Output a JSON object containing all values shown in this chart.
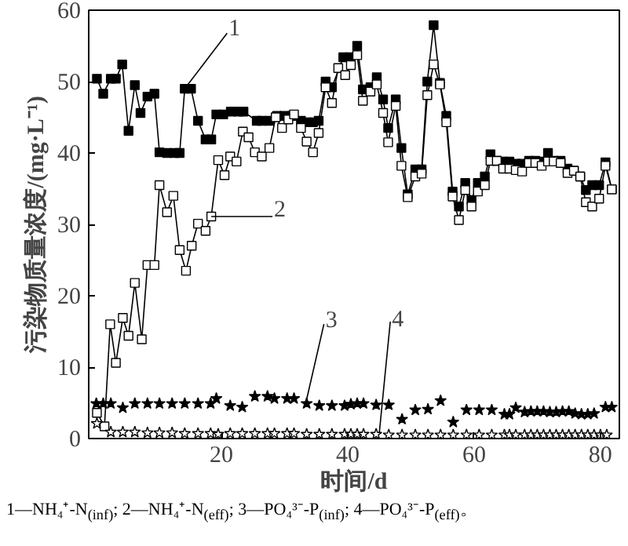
{
  "chart_data": {
    "type": "line",
    "xlabel": "时间/d",
    "ylabel": "污染物质量浓度/(mg·L⁻¹)",
    "xlim": [
      -1,
      83
    ],
    "ylim": [
      0,
      60
    ],
    "xticks": [
      20,
      40,
      60,
      80
    ],
    "yticks": [
      0,
      10,
      20,
      30,
      40,
      50,
      60
    ],
    "grid": false,
    "series": [
      {
        "marker": "square",
        "color": "#000000",
        "x": [
          0.3,
          1.3,
          2.5,
          3.3,
          4.3,
          5.3,
          6.3,
          7.2,
          8.3,
          9.4,
          10.2,
          11.4,
          12.6,
          13.4,
          14.2,
          15.2,
          16.3,
          17.5,
          18.4,
          19.2,
          20.3,
          21.5,
          22.7,
          23.5,
          25.6,
          26.4,
          27.6,
          28.8,
          30.0,
          31.2,
          32.6,
          33.7,
          34.5,
          35.4,
          36.5,
          37.5,
          39.3,
          40.4,
          41.5,
          42.4,
          43.6,
          44.6,
          45.6,
          46.4,
          47.6,
          48.5,
          49.5,
          50.7,
          51.7,
          52.6,
          53.6,
          54.6,
          55.6,
          56.6,
          57.6,
          58.6,
          59.6,
          60.6,
          61.7,
          62.6,
          63.6,
          64.6,
          65.6,
          66.6,
          67.6,
          68.7,
          69.7,
          70.7,
          71.7,
          72.6,
          73.7,
          74.8,
          75.8,
          76.8,
          77.7,
          78.7,
          79.8,
          80.8,
          81.8
        ],
        "values": [
          50.4,
          48.3,
          50.4,
          50.4,
          52.4,
          43.1,
          49.5,
          45.6,
          47.9,
          48.3,
          40.1,
          40,
          40,
          40,
          49,
          49,
          44.5,
          41.9,
          41.9,
          45.4,
          45.4,
          45.8,
          45.8,
          45.8,
          44.5,
          44.5,
          44.5,
          45.2,
          45.2,
          45.2,
          44.5,
          44.3,
          44.3,
          44.5,
          50.0,
          49.2,
          53.4,
          53.4,
          55.0,
          48.9,
          49.2,
          50.6,
          47.5,
          43.5,
          47.5,
          40.7,
          34.2,
          37.7,
          37.7,
          50.0,
          57.9,
          49.8,
          45.2,
          34.6,
          32.5,
          35.8,
          33.4,
          35.8,
          36.7,
          39.8,
          38.9,
          38.8,
          38.8,
          38.5,
          38.5,
          38.9,
          38.9,
          38.8,
          40.0,
          38.9,
          38.9,
          37.8,
          37.5,
          36.7,
          34.8,
          35.5,
          35.5,
          38.7,
          34.9
        ]
      },
      {
        "marker": "square",
        "color": "#ffffff",
        "x": [
          0.3,
          1.5,
          2.4,
          3.3,
          4.4,
          5.3,
          6.3,
          7.4,
          8.3,
          9.4,
          10.2,
          11.4,
          12.4,
          13.4,
          14.4,
          15.3,
          16.3,
          17.5,
          18.4,
          19.5,
          20.5,
          21.4,
          22.4,
          23.4,
          24.3,
          25.3,
          26.4,
          27.6,
          28.6,
          29.6,
          30.6,
          31.5,
          32.6,
          33.5,
          34.5,
          35.4,
          36.5,
          37.5,
          38.5,
          39.6,
          40.5,
          41.5,
          42.4,
          43.6,
          44.6,
          45.6,
          46.4,
          47.6,
          48.5,
          49.5,
          50.7,
          51.7,
          52.6,
          53.6,
          54.6,
          55.6,
          56.6,
          57.6,
          58.6,
          59.6,
          60.6,
          61.7,
          62.6,
          63.6,
          64.6,
          65.6,
          66.6,
          67.6,
          68.7,
          69.7,
          70.7,
          71.7,
          72.6,
          73.7,
          74.8,
          75.8,
          76.8,
          77.7,
          78.7,
          79.8,
          80.8,
          81.8
        ],
        "values": [
          3.6,
          1.7,
          16.0,
          10.6,
          16.9,
          14.4,
          21.8,
          13.9,
          24.3,
          24.3,
          35.5,
          31.7,
          34.0,
          26.4,
          23.5,
          27.0,
          30.1,
          29.1,
          31.1,
          39.0,
          36.9,
          39.5,
          38.8,
          43.0,
          42.2,
          40.1,
          39.5,
          40.7,
          45.0,
          43.5,
          44.7,
          45.4,
          43.5,
          41.6,
          40.1,
          42.8,
          49.2,
          47.0,
          51.9,
          50.9,
          52.3,
          53.7,
          47.3,
          48.6,
          49.6,
          45.6,
          41.5,
          46.6,
          38.2,
          33.8,
          36.7,
          37.1,
          48.1,
          52.4,
          49.6,
          44.3,
          33.9,
          30.6,
          34.8,
          32.5,
          34.6,
          35.5,
          38.9,
          38.9,
          37.8,
          37.8,
          37.6,
          37.4,
          38.6,
          38.6,
          38.2,
          38.8,
          38.8,
          38.6,
          37.2,
          37.5,
          36.7,
          33.1,
          32.5,
          33.6,
          38.2,
          34.9
        ]
      },
      {
        "type": "scatter",
        "marker": "star",
        "color": "#000000",
        "x": [
          0.2,
          1.3,
          2.5,
          4.4,
          6.3,
          8.3,
          10.2,
          12.2,
          14.2,
          16.3,
          18.3,
          19.2,
          21.4,
          23.3,
          25.3,
          27.3,
          28.4,
          30.4,
          31.5,
          33.5,
          35.5,
          37.5,
          39.5,
          40.5,
          41.5,
          42.5,
          44.5,
          46.5,
          48.6,
          50.7,
          52.7,
          54.7,
          56.7,
          58.8,
          60.8,
          62.8,
          64.8,
          65.6,
          66.6,
          68,
          69,
          70,
          71,
          72,
          73,
          74,
          75,
          76,
          77,
          78,
          79,
          80.8,
          81.8
        ],
        "values": [
          4.9,
          4.9,
          4.9,
          4.3,
          4.9,
          4.9,
          4.9,
          4.9,
          4.9,
          4.9,
          4.9,
          5.6,
          4.6,
          4.4,
          5.9,
          5.9,
          5.6,
          5.6,
          5.6,
          4.9,
          4.6,
          4.6,
          4.6,
          4.8,
          4.9,
          4.9,
          4.7,
          4.7,
          2.7,
          4.0,
          4.1,
          5.3,
          2.3,
          4.0,
          4.0,
          4.0,
          3.4,
          3.4,
          4.3,
          3.7,
          3.8,
          3.8,
          3.8,
          3.7,
          3.7,
          3.8,
          3.8,
          3.5,
          3.4,
          3.4,
          3.5,
          4.4,
          4.4
        ]
      },
      {
        "type": "scatter",
        "marker": "star",
        "color": "#ffffff",
        "x": [
          0.3,
          2.5,
          4.4,
          6.3,
          8.3,
          10.2,
          12.2,
          14.2,
          16.3,
          18.3,
          19.5,
          21.4,
          23.3,
          25.3,
          27.3,
          28.4,
          30.4,
          31.5,
          33.5,
          35.5,
          37.5,
          39.5,
          40.5,
          41.5,
          42.5,
          44.5,
          46.5,
          48.6,
          50.7,
          52.7,
          54.7,
          56.7,
          58.8,
          60.8,
          62.8,
          64.8,
          65.6,
          66.6,
          68,
          69,
          70,
          71,
          72,
          73,
          74,
          75,
          76,
          77,
          78,
          79,
          80,
          81
        ],
        "values": [
          2.1,
          0.9,
          0.9,
          0.9,
          0.8,
          0.8,
          0.8,
          0.7,
          0.7,
          0.7,
          0.6,
          0.7,
          0.7,
          0.7,
          0.7,
          0.7,
          0.7,
          0.7,
          0.6,
          0.6,
          0.6,
          0.6,
          0.6,
          0.6,
          0.6,
          0.6,
          0.5,
          0.5,
          0.5,
          0.5,
          0.5,
          0.5,
          0.5,
          0.5,
          0.5,
          0.5,
          0.5,
          0.5,
          0.5,
          0.5,
          0.5,
          0.5,
          0.5,
          0.5,
          0.5,
          0.5,
          0.5,
          0.5,
          0.5,
          0.5,
          0.5,
          0.5
        ]
      }
    ],
    "annotations": [
      {
        "text": "1",
        "x": 14.2,
        "y": 49
      },
      {
        "text": "2",
        "x": 18.4,
        "y": 31.1
      },
      {
        "text": "3",
        "x": 33.5,
        "y": 5.5
      },
      {
        "text": "4",
        "x": 45,
        "y": 0.8
      },
      "1—NH₄⁺-N$_{(inf)}$; 2—NH₄⁺-N$_{(eff)}$; 3—PO₄³⁻-P$_{(inf)}$; 4—PO₄³⁻-P$_{(eff)}$。"
    ]
  }
}
